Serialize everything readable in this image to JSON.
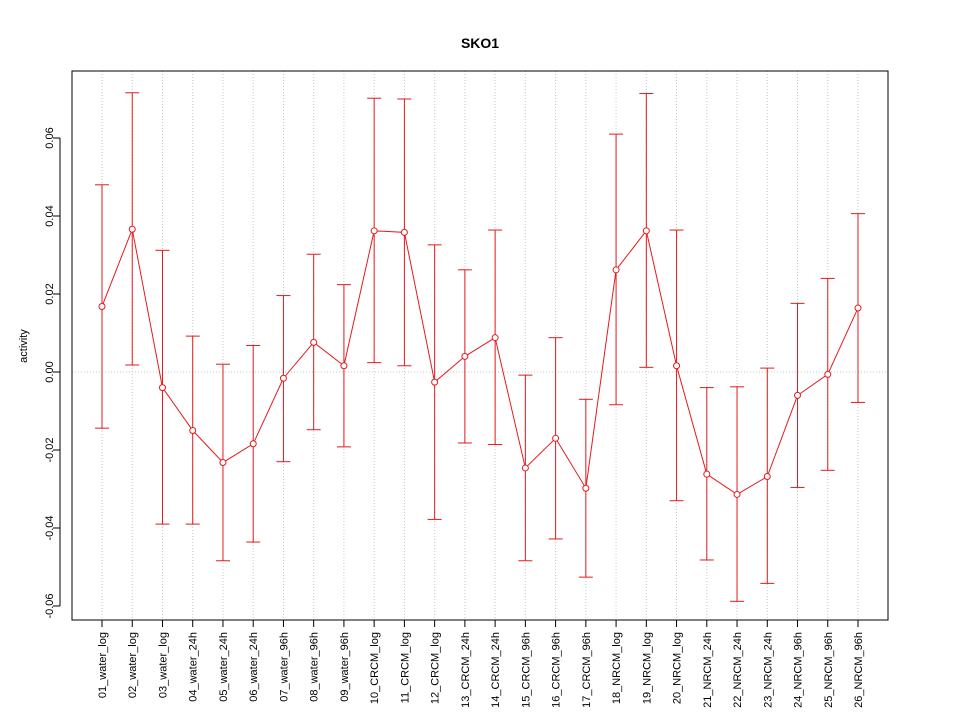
{
  "chart_data": {
    "type": "line",
    "title": "SKO1",
    "xlabel": "",
    "ylabel": "activity",
    "ylim": [
      -0.064,
      0.077
    ],
    "yticks": [
      -0.06,
      -0.04,
      -0.02,
      0.0,
      0.02,
      0.04,
      0.06
    ],
    "ytick_labels": [
      "-0.06",
      "-0.04",
      "-0.02",
      "0.00",
      "0.02",
      "0.04",
      "0.06"
    ],
    "grid": true,
    "colors": {
      "series": "#e41a1c",
      "grid": "#c8c8c8",
      "axis": "#000000"
    },
    "categories": [
      "01_water_log",
      "02_water_log",
      "03_water_log",
      "04_water_24h",
      "05_water_24h",
      "06_water_24h",
      "07_water_96h",
      "08_water_96h",
      "09_water_96h",
      "10_CRCM_log",
      "11_CRCM_log",
      "12_CRCM_log",
      "13_CRCM_24h",
      "14_CRCM_24h",
      "15_CRCM_96h",
      "16_CRCM_96h",
      "17_CRCM_96h",
      "18_NRCM_log",
      "19_NRCM_log",
      "20_NRCM_log",
      "21_NRCM_24h",
      "22_NRCM_24h",
      "23_NRCM_24h",
      "24_NRCM_96h",
      "25_NRCM_96h",
      "26_NRCM_96h"
    ],
    "values": [
      0.0168,
      0.0366,
      -0.004,
      -0.015,
      -0.0232,
      -0.0184,
      -0.0016,
      0.0076,
      0.0016,
      0.0362,
      0.0358,
      -0.0026,
      0.004,
      0.0088,
      -0.0246,
      -0.017,
      -0.0298,
      0.0262,
      0.0362,
      0.0016,
      -0.0262,
      -0.0314,
      -0.0268,
      -0.006,
      -0.0006,
      0.0164
    ],
    "upper": [
      0.048,
      0.0716,
      0.0312,
      0.0092,
      0.002,
      0.0068,
      0.0196,
      0.0302,
      0.0224,
      0.0702,
      0.07,
      0.0326,
      0.0262,
      0.0364,
      -0.0008,
      0.0088,
      -0.007,
      0.061,
      0.0714,
      0.0364,
      -0.004,
      -0.0038,
      0.001,
      0.0176,
      0.024,
      0.0406
    ],
    "lower": [
      -0.0144,
      0.0018,
      -0.039,
      -0.039,
      -0.0484,
      -0.0436,
      -0.023,
      -0.0148,
      -0.0192,
      0.0024,
      0.0016,
      -0.0378,
      -0.0182,
      -0.0186,
      -0.0484,
      -0.0428,
      -0.0526,
      -0.0084,
      0.0012,
      -0.033,
      -0.0482,
      -0.0588,
      -0.0542,
      -0.0296,
      -0.0252,
      -0.0078
    ]
  }
}
